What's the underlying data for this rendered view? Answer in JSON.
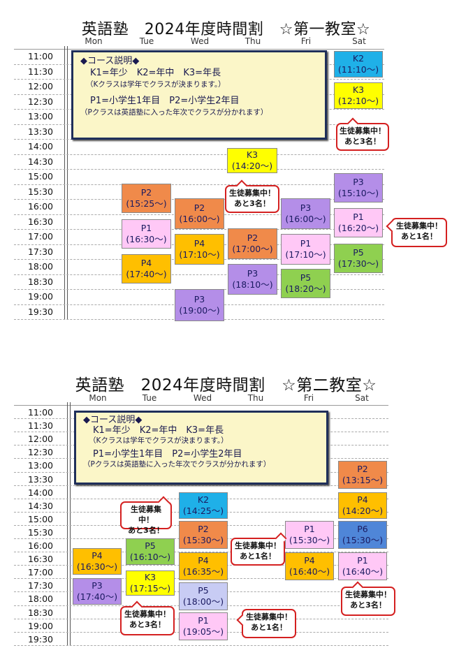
{
  "sections": [
    {
      "title": "英語塾　2024年度時間割　☆第一教室☆",
      "days": [
        "Mon",
        "Tue",
        "Wed",
        "Thu",
        "Fri",
        "Sat"
      ],
      "times": [
        "11:00",
        "11:30",
        "12:00",
        "12:30",
        "13:00",
        "13:30",
        "14:00",
        "14:30",
        "15:00",
        "15:30",
        "16:00",
        "16:30",
        "17:00",
        "17:30",
        "18:00",
        "18:30",
        "19:00",
        "19:30"
      ],
      "info": {
        "heading": "◆コース説明◆",
        "line1": "K1=年少　K2=年中　K3=年長",
        "line2": "（Kクラスは学年でクラスが決まります。）",
        "line3": "P1=小学生1年目　P2=小学生2年目",
        "line4": "（Pクラスは英語塾に入った年次でクラスが分かれます）"
      },
      "classes": [
        {
          "name": "K2",
          "time": "(11:10～)",
          "color": "#1fb0e8"
        },
        {
          "name": "K3",
          "time": "(12:10～)",
          "color": "#ffff00"
        },
        {
          "name": "K3",
          "time": "(14:20～)",
          "color": "#ffff00"
        },
        {
          "name": "P3",
          "time": "(15:10～)",
          "color": "#b48ee8"
        },
        {
          "name": "P2",
          "time": "(15:25～)",
          "color": "#f08a4a"
        },
        {
          "name": "P2",
          "time": "(16:00～)",
          "color": "#f08a4a"
        },
        {
          "name": "P3",
          "time": "(16:00～)",
          "color": "#b48ee8"
        },
        {
          "name": "P1",
          "time": "(16:20～)",
          "color": "#ffc8f6"
        },
        {
          "name": "P1",
          "time": "(16:30～)",
          "color": "#ffc8f6"
        },
        {
          "name": "P4",
          "time": "(17:10～)",
          "color": "#ffbf00"
        },
        {
          "name": "P2",
          "time": "(17:00～)",
          "color": "#f08a4a"
        },
        {
          "name": "P1",
          "time": "(17:10～)",
          "color": "#ffc8f6"
        },
        {
          "name": "P5",
          "time": "(17:30～)",
          "color": "#8fd050"
        },
        {
          "name": "P4",
          "time": "(17:40～)",
          "color": "#ffbf00"
        },
        {
          "name": "P3",
          "time": "(18:10～)",
          "color": "#b48ee8"
        },
        {
          "name": "P5",
          "time": "(18:20～)",
          "color": "#8fd050"
        },
        {
          "name": "P3",
          "time": "(19:00～)",
          "color": "#b48ee8"
        }
      ],
      "callouts": [
        {
          "line1": "生徒募集中！",
          "line2": "あと3名！"
        },
        {
          "line1": "生徒募集中！",
          "line2": "あと3名！"
        },
        {
          "line1": "生徒募集中！",
          "line2": "あと1名！"
        }
      ]
    },
    {
      "title": "英語塾　2024年度時間割　☆第二教室☆",
      "days": [
        "Mon",
        "Tue",
        "Wed",
        "Thu",
        "Fri",
        "Sat"
      ],
      "times": [
        "11:00",
        "11:30",
        "12:00",
        "12:30",
        "13:00",
        "13:30",
        "14:00",
        "14:30",
        "15:00",
        "15:30",
        "16:00",
        "16:30",
        "17:00",
        "17:30",
        "18:00",
        "18:30",
        "19:00",
        "19:30"
      ],
      "info": {
        "heading": "◆コース説明◆",
        "line1": "K1=年少　K2=年中　K3=年長",
        "line2": "（Kクラスは学年でクラスが決まります。）",
        "line3": "P1=小学生1年目　P2=小学生2年目",
        "line4": "（Pクラスは英語塾に入った年次でクラスが分かれます）"
      },
      "classes": [
        {
          "name": "P2",
          "time": "(13:15～)",
          "color": "#f08a4a"
        },
        {
          "name": "K2",
          "time": "(14:25～)",
          "color": "#1fb0e8"
        },
        {
          "name": "P4",
          "time": "(14:20～)",
          "color": "#ffbf00"
        },
        {
          "name": "P2",
          "time": "(15:30～)",
          "color": "#f08a4a"
        },
        {
          "name": "P1",
          "time": "(15:30～)",
          "color": "#ffc8f6"
        },
        {
          "name": "P6",
          "time": "(15:30～)",
          "color": "#4f86d8"
        },
        {
          "name": "P5",
          "time": "(16:10～)",
          "color": "#8fd050"
        },
        {
          "name": "P4",
          "time": "(16:30～)",
          "color": "#ffbf00"
        },
        {
          "name": "P4",
          "time": "(16:35～)",
          "color": "#ffbf00"
        },
        {
          "name": "P4",
          "time": "(16:40～)",
          "color": "#ffbf00"
        },
        {
          "name": "P1",
          "time": "(16:40～)",
          "color": "#ffc8f6"
        },
        {
          "name": "K3",
          "time": "(17:15～)",
          "color": "#ffff00"
        },
        {
          "name": "P3",
          "time": "(17:40～)",
          "color": "#b48ee8"
        },
        {
          "name": "P5",
          "time": "(18:00～)",
          "color": "#c8ccf4"
        },
        {
          "name": "P1",
          "time": "(19:05～)",
          "color": "#ffc8f6"
        }
      ],
      "callouts": [
        {
          "line1": "生徒募集中！",
          "line2": "あと3名！"
        },
        {
          "line1": "生徒募集中！",
          "line2": "あと1名！"
        },
        {
          "line1": "生徒募集中！",
          "line2": "あと3名！"
        },
        {
          "line1": "生徒募集中！",
          "line2": "あと3名！"
        },
        {
          "line1": "生徒募集中！",
          "line2": "あと1名！"
        }
      ]
    }
  ]
}
